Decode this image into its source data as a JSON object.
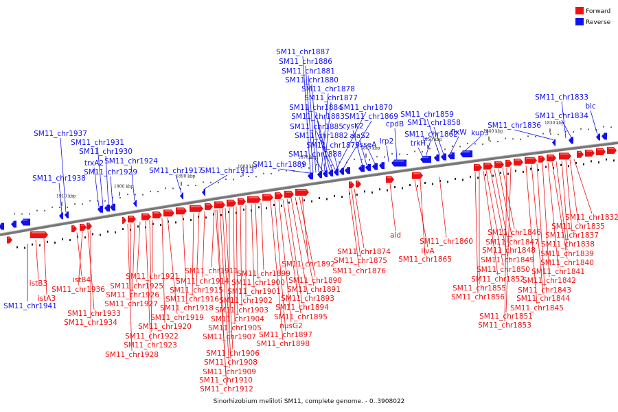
{
  "caption": "Sinorhizobium meliloti SM11, complete genome. - 0..3908022",
  "legend": {
    "forward": {
      "label": "Forward",
      "color": "#ee1111"
    },
    "reverse": {
      "label": "Reverse",
      "color": "#1111ee"
    }
  },
  "ticks": [
    "1910 kbp",
    "1900 kbp",
    "1890 kbp",
    "1880 kbp",
    "1870 kbp",
    "1860 kbp",
    "1850 kbp",
    "1840 kbp",
    "1830 kbp"
  ],
  "reverse_labels": [
    "SM11_chr1887",
    "SM11_chr1886",
    "SM11_chr1881",
    "SM11_chr1880",
    "SM11_chr1878",
    "SM11_chr1877",
    "SM11_chr1884",
    "SM11_chr1870",
    "SM11_chr1883",
    "SM11_chr1869",
    "SM11_chr1885",
    "cysK2",
    "SM11_chr1882",
    "alaS2",
    "SM11_chr1879",
    "sseA",
    "SM11_chr1888",
    "SM11_chr1889",
    "SM11_chr1859",
    "SM11_chr1858",
    "cpdB",
    "lrp2",
    "SM11_chr1862",
    "flxW",
    "kup3",
    "trkH",
    "SM11_chr1833",
    "SM11_chr1834",
    "blc",
    "SM11_chr1836",
    "SM11_chr1937",
    "SM11_chr1931",
    "SM11_chr1930",
    "trxA2",
    "SM11_chr1924",
    "SM11_chr1929",
    "SM11_chr1917",
    "SM11_chr1913",
    "SM11_chr1938",
    "SM11_chr1941"
  ],
  "forward_labels": [
    "istB3",
    "istA3",
    "istB4",
    "SM11_chr1936",
    "SM11_chr1933",
    "SM11_chr1934",
    "SM11_chr1921",
    "SM11_chr1925",
    "SM11_chr1926",
    "SM11_chr1927",
    "SM11_chr1919",
    "SM11_chr1920",
    "SM11_chr1922",
    "SM11_chr1923",
    "SM11_chr1928",
    "SM11_chr1911",
    "SM11_chr1914",
    "SM11_chr1915",
    "SM11_chr1916",
    "SM11_chr1918",
    "SM11_chr1899",
    "SM11_chr1900",
    "SM11_chr1901",
    "SM11_chr1902",
    "SM11_chr1903",
    "SM11_chr1904",
    "SM11_chr1905",
    "SM11_chr1907",
    "SM11_chr1906",
    "SM11_chr1908",
    "SM11_chr1909",
    "SM11_chr1910",
    "SM11_chr1912",
    "SM11_chr1892",
    "SM11_chr1890",
    "SM11_chr1891",
    "SM11_chr1893",
    "SM11_chr1894",
    "SM11_chr1895",
    "nusG2",
    "SM11_chr1897",
    "SM11_chr1898",
    "SM11_chr1874",
    "SM11_chr1875",
    "SM11_chr1876",
    "ald",
    "ilvA",
    "SM11_chr1865",
    "SM11_chr1860",
    "SM11_chr1846",
    "SM11_chr1847",
    "SM11_chr1848",
    "SM11_chr1849",
    "SM11_chr1850",
    "SM11_chr1852",
    "SM11_chr1855",
    "SM11_chr1856",
    "SM11_chr1851",
    "SM11_chr1853",
    "SM11_chr1832",
    "SM11_chr1835",
    "SM11_chr1837",
    "SM11_chr1838",
    "SM11_chr1839",
    "SM11_chr1840",
    "SM11_chr1841",
    "SM11_chr1842",
    "SM11_chr1843",
    "SM11_chr1844",
    "SM11_chr1845"
  ]
}
